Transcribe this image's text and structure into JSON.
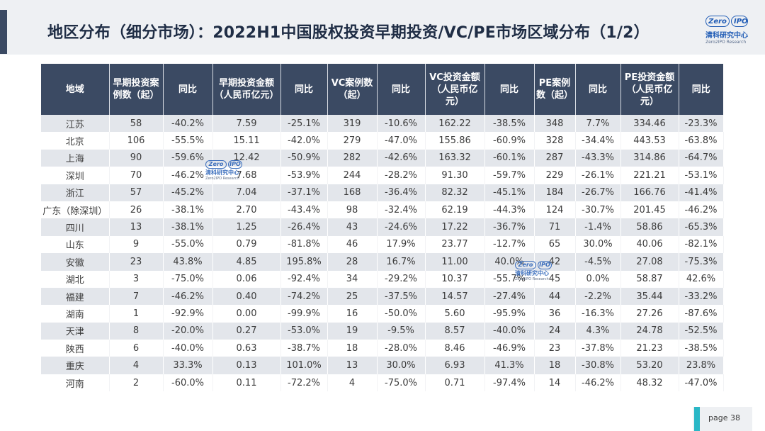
{
  "header": {
    "title": "地区分布（细分市场）：2022H1中国股权投资早期投资/VC/PE市场区域分布（1/2）"
  },
  "logo": {
    "mark_left": "Zero",
    "mark_right": "IPO",
    "name_cn": "清科研究中心",
    "name_en": "Zero2IPO Research"
  },
  "table": {
    "columns": [
      "地域",
      "早期投资案例数（起）",
      "同比",
      "早期投资金额（人民币亿元）",
      "同比",
      "VC案例数（起）",
      "同比",
      "VC投资金额（人民币亿元）",
      "同比",
      "PE案例数（起）",
      "同比",
      "PE投资金额（人民币亿元）",
      "同比"
    ],
    "rows": [
      [
        "江苏",
        "58",
        "-40.2%",
        "7.59",
        "-25.1%",
        "319",
        "-10.6%",
        "162.22",
        "-38.5%",
        "348",
        "7.7%",
        "334.46",
        "-23.3%"
      ],
      [
        "北京",
        "106",
        "-55.5%",
        "15.11",
        "-42.0%",
        "279",
        "-47.0%",
        "155.86",
        "-60.9%",
        "328",
        "-34.4%",
        "443.53",
        "-63.8%"
      ],
      [
        "上海",
        "90",
        "-59.6%",
        "12.42",
        "-50.9%",
        "282",
        "-42.6%",
        "163.32",
        "-60.1%",
        "287",
        "-43.3%",
        "314.86",
        "-64.7%"
      ],
      [
        "深圳",
        "70",
        "-46.2%",
        "7.68",
        "-53.9%",
        "244",
        "-28.2%",
        "91.30",
        "-59.7%",
        "229",
        "-26.1%",
        "221.21",
        "-53.1%"
      ],
      [
        "浙江",
        "57",
        "-45.2%",
        "7.04",
        "-37.1%",
        "168",
        "-36.4%",
        "82.32",
        "-45.1%",
        "184",
        "-26.7%",
        "166.76",
        "-41.4%"
      ],
      [
        "广东（除深圳）",
        "26",
        "-38.1%",
        "2.70",
        "-43.4%",
        "98",
        "-32.4%",
        "62.19",
        "-44.3%",
        "124",
        "-30.7%",
        "201.45",
        "-46.2%"
      ],
      [
        "四川",
        "13",
        "-38.1%",
        "1.25",
        "-26.4%",
        "43",
        "-24.6%",
        "17.22",
        "-36.7%",
        "71",
        "-1.4%",
        "58.86",
        "-65.3%"
      ],
      [
        "山东",
        "9",
        "-55.0%",
        "0.79",
        "-81.8%",
        "46",
        "17.9%",
        "23.77",
        "-12.7%",
        "65",
        "30.0%",
        "40.06",
        "-82.1%"
      ],
      [
        "安徽",
        "23",
        "43.8%",
        "4.85",
        "195.8%",
        "28",
        "16.7%",
        "11.00",
        "40.0%",
        "42",
        "-4.5%",
        "27.08",
        "-75.3%"
      ],
      [
        "湖北",
        "3",
        "-75.0%",
        "0.06",
        "-92.4%",
        "34",
        "-29.2%",
        "10.37",
        "-55.7%",
        "45",
        "0.0%",
        "58.87",
        "42.6%"
      ],
      [
        "福建",
        "7",
        "-46.2%",
        "0.40",
        "-74.2%",
        "25",
        "-37.5%",
        "14.57",
        "-27.4%",
        "44",
        "-2.2%",
        "35.44",
        "-33.2%"
      ],
      [
        "湖南",
        "1",
        "-92.9%",
        "0.00",
        "-99.9%",
        "16",
        "-50.0%",
        "5.60",
        "-95.9%",
        "36",
        "-16.3%",
        "27.26",
        "-87.6%"
      ],
      [
        "天津",
        "8",
        "-20.0%",
        "0.27",
        "-53.0%",
        "19",
        "-9.5%",
        "8.57",
        "-40.0%",
        "24",
        "4.3%",
        "24.78",
        "-52.5%"
      ],
      [
        "陕西",
        "6",
        "-40.0%",
        "0.63",
        "-38.7%",
        "18",
        "-28.0%",
        "8.46",
        "-46.9%",
        "23",
        "-37.8%",
        "21.23",
        "-38.5%"
      ],
      [
        "重庆",
        "4",
        "33.3%",
        "0.13",
        "101.0%",
        "13",
        "30.0%",
        "6.93",
        "41.3%",
        "18",
        "-30.8%",
        "53.20",
        "23.8%"
      ],
      [
        "河南",
        "2",
        "-60.0%",
        "0.11",
        "-72.2%",
        "4",
        "-75.0%",
        "0.71",
        "-97.4%",
        "14",
        "-46.2%",
        "48.32",
        "-47.0%"
      ]
    ]
  },
  "watermark": {
    "mark_left": "Zero",
    "mark_right": "IPO",
    "name_cn": "清科研究中心",
    "name_en": "Zero2IPO Research"
  },
  "footer": {
    "page_label": "page  38"
  }
}
